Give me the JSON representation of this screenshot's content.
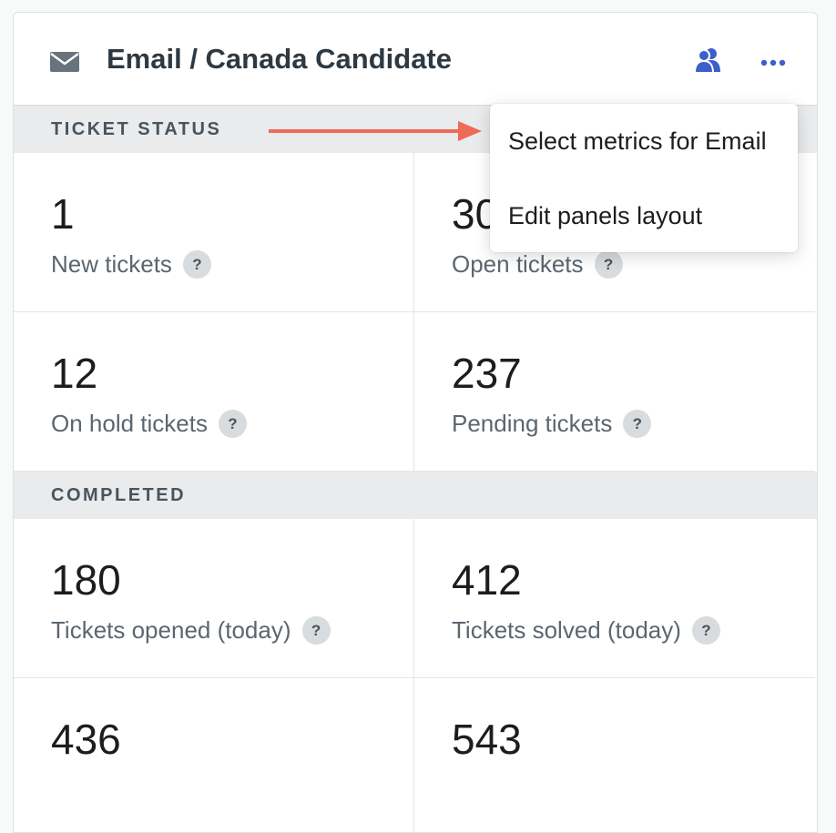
{
  "header": {
    "title": "Email / Canada Candidate",
    "mail_icon": "mail-icon",
    "people_icon": "people-icon",
    "more_icon": "more-horizontal-icon",
    "accent_color": "#3c5fc9"
  },
  "sections": [
    {
      "title": "TICKET STATUS",
      "metrics": [
        {
          "value": "1",
          "label": "New tickets"
        },
        {
          "value": "30",
          "label": "Open tickets"
        },
        {
          "value": "12",
          "label": "On hold tickets"
        },
        {
          "value": "237",
          "label": "Pending tickets"
        }
      ]
    },
    {
      "title": "COMPLETED",
      "metrics": [
        {
          "value": "180",
          "label": "Tickets opened (today)"
        },
        {
          "value": "412",
          "label": "Tickets solved (today)"
        },
        {
          "value": "436",
          "label": ""
        },
        {
          "value": "543",
          "label": ""
        }
      ]
    }
  ],
  "help_glyph": "?",
  "menu": {
    "items": [
      "Select metrics for Email",
      "Edit panels layout"
    ]
  },
  "annotation": {
    "arrow_color": "#ee6b55"
  }
}
